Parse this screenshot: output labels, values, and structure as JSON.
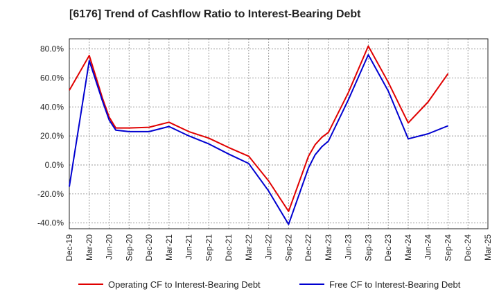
{
  "chart_data": {
    "type": "line",
    "title": "[6176]  Trend of Cashflow Ratio to Interest-Bearing Debt",
    "xlabel": "",
    "ylabel": "",
    "x_ticks": [
      "Dec-19",
      "Mar-20",
      "Jun-20",
      "Sep-20",
      "Dec-20",
      "Mar-21",
      "Jun-21",
      "Sep-21",
      "Dec-21",
      "Mar-22",
      "Jun-22",
      "Sep-22",
      "Dec-22",
      "Mar-23",
      "Jun-23",
      "Sep-23",
      "Dec-23",
      "Mar-24",
      "Jun-24",
      "Sep-24",
      "Dec-24",
      "Mar-25"
    ],
    "ylim": [
      -44,
      87
    ],
    "y_ticks": [
      -40,
      -20,
      0,
      20,
      40,
      60,
      80
    ],
    "y_tick_labels": [
      "-40.0%",
      "-20.0%",
      "0.0%",
      "20.0%",
      "40.0%",
      "60.0%",
      "80.0%"
    ],
    "grid": true,
    "legend_position": "bottom",
    "series": [
      {
        "name": "Operating CF to Interest-Bearing Debt",
        "color": "#e00000",
        "points": [
          [
            "Dec-19",
            51.5
          ],
          [
            "Mar-20",
            75.5
          ],
          [
            "May-20",
            46.0
          ],
          [
            "Jun-20",
            33.0
          ],
          [
            "Jul-20",
            25.5
          ],
          [
            "Sep-20",
            25.5
          ],
          [
            "Dec-20",
            26.0
          ],
          [
            "Mar-21",
            29.5
          ],
          [
            "Jun-21",
            23.0
          ],
          [
            "Sep-21",
            18.5
          ],
          [
            "Dec-21",
            12.0
          ],
          [
            "Mar-22",
            6.0
          ],
          [
            "Jun-22",
            -11.0
          ],
          [
            "Sep-22",
            -32.0
          ],
          [
            "Dec-22",
            6.0
          ],
          [
            "Jan-23",
            14.0
          ],
          [
            "Feb-23",
            19.0
          ],
          [
            "Mar-23",
            22.5
          ],
          [
            "Jun-23",
            50.0
          ],
          [
            "Sep-23",
            82.0
          ],
          [
            "Dec-23",
            57.0
          ],
          [
            "Mar-24",
            29.0
          ],
          [
            "Jun-24",
            43.5
          ],
          [
            "Sep-24",
            63.0
          ]
        ]
      },
      {
        "name": "Free CF to Interest-Bearing Debt",
        "color": "#0000d0",
        "points": [
          [
            "Dec-19",
            -15.0
          ],
          [
            "Mar-20",
            72.0
          ],
          [
            "May-20",
            44.0
          ],
          [
            "Jun-20",
            31.0
          ],
          [
            "Jul-20",
            24.0
          ],
          [
            "Sep-20",
            23.0
          ],
          [
            "Dec-20",
            23.0
          ],
          [
            "Mar-21",
            26.5
          ],
          [
            "Jun-21",
            20.0
          ],
          [
            "Sep-21",
            14.5
          ],
          [
            "Dec-21",
            7.5
          ],
          [
            "Mar-22",
            1.0
          ],
          [
            "Jun-22",
            -18.0
          ],
          [
            "Sep-22",
            -41.0
          ],
          [
            "Dec-22",
            -2.0
          ],
          [
            "Jan-23",
            7.0
          ],
          [
            "Feb-23",
            12.5
          ],
          [
            "Mar-23",
            16.5
          ],
          [
            "Jun-23",
            45.0
          ],
          [
            "Sep-23",
            76.0
          ],
          [
            "Dec-23",
            51.0
          ],
          [
            "Mar-24",
            18.0
          ],
          [
            "Jun-24",
            21.5
          ],
          [
            "Sep-24",
            27.0
          ]
        ]
      }
    ]
  }
}
